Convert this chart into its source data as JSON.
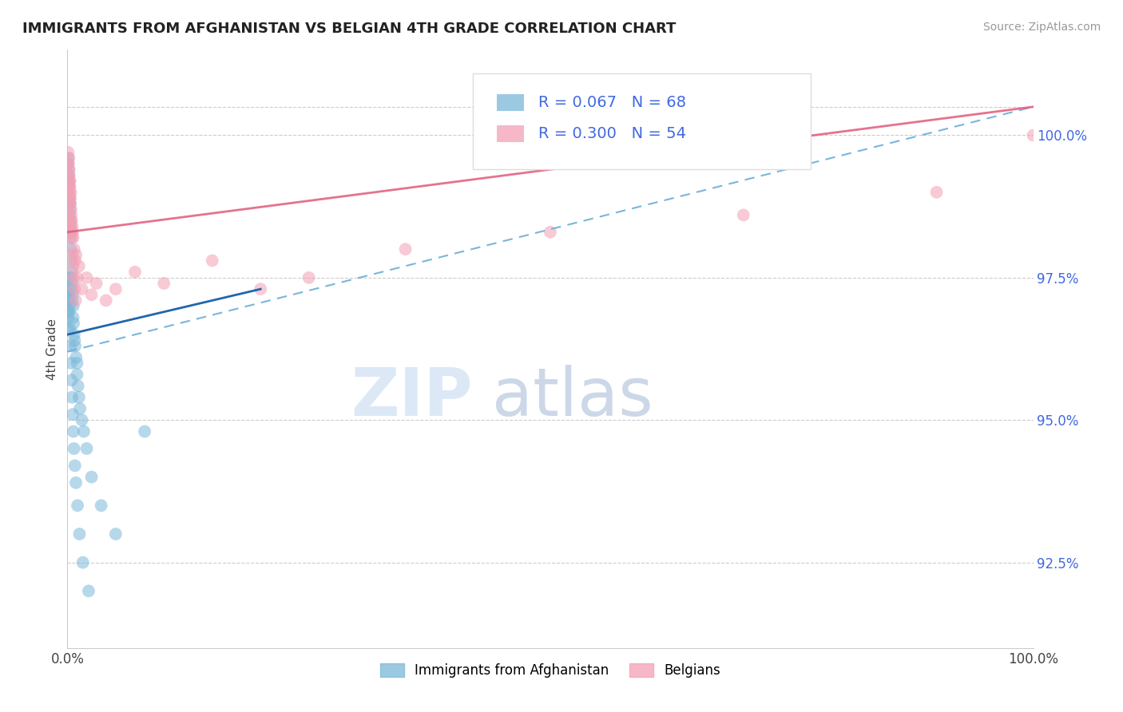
{
  "title": "IMMIGRANTS FROM AFGHANISTAN VS BELGIAN 4TH GRADE CORRELATION CHART",
  "source": "Source: ZipAtlas.com",
  "ylabel": "4th Grade",
  "xlim": [
    0.0,
    100.0
  ],
  "ylim": [
    91.0,
    101.5
  ],
  "yticks": [
    92.5,
    95.0,
    97.5,
    100.0
  ],
  "ytick_labels": [
    "92.5%",
    "95.0%",
    "97.5%",
    "100.0%"
  ],
  "legend_blue_label": "R = 0.067   N = 68",
  "legend_pink_label": "R = 0.300   N = 54",
  "legend_bottom_blue": "Immigrants from Afghanistan",
  "legend_bottom_pink": "Belgians",
  "blue_color": "#7ab8d9",
  "pink_color": "#f4a0b5",
  "blue_line_color": "#2166ac",
  "pink_line_color": "#e05a7a",
  "dashed_line_color": "#6baed6",
  "background_color": "#ffffff",
  "ytick_color": "#4169e1",
  "blue_line_x": [
    0.0,
    20.0
  ],
  "blue_line_y": [
    96.5,
    97.3
  ],
  "dashed_line_x": [
    0.0,
    100.0
  ],
  "dashed_line_y": [
    96.2,
    100.5
  ],
  "pink_line_x": [
    0.0,
    100.0
  ],
  "pink_line_y": [
    98.3,
    100.5
  ],
  "blue_scatter_x": [
    0.05,
    0.05,
    0.1,
    0.1,
    0.1,
    0.15,
    0.15,
    0.15,
    0.2,
    0.2,
    0.2,
    0.2,
    0.25,
    0.25,
    0.3,
    0.3,
    0.3,
    0.35,
    0.35,
    0.4,
    0.4,
    0.45,
    0.45,
    0.5,
    0.5,
    0.55,
    0.6,
    0.6,
    0.65,
    0.7,
    0.75,
    0.8,
    0.9,
    1.0,
    1.0,
    1.1,
    1.2,
    1.3,
    1.5,
    1.7,
    2.0,
    2.5,
    3.5,
    5.0,
    8.0,
    0.05,
    0.05,
    0.08,
    0.08,
    0.12,
    0.12,
    0.18,
    0.18,
    0.22,
    0.28,
    0.32,
    0.38,
    0.42,
    0.48,
    0.55,
    0.62,
    0.68,
    0.78,
    0.88,
    1.05,
    1.25,
    1.6,
    2.2
  ],
  "blue_scatter_y": [
    99.5,
    99.2,
    99.6,
    99.3,
    99.0,
    99.4,
    99.1,
    98.8,
    99.2,
    98.9,
    98.6,
    98.3,
    98.7,
    98.4,
    98.8,
    98.5,
    98.2,
    98.3,
    98.0,
    97.8,
    97.5,
    97.6,
    97.3,
    97.4,
    97.1,
    97.2,
    97.0,
    96.8,
    96.7,
    96.5,
    96.4,
    96.3,
    96.1,
    96.0,
    95.8,
    95.6,
    95.4,
    95.2,
    95.0,
    94.8,
    94.5,
    94.0,
    93.5,
    93.0,
    94.8,
    96.9,
    96.6,
    97.2,
    96.8,
    97.5,
    97.1,
    97.3,
    96.9,
    97.0,
    96.6,
    96.3,
    96.0,
    95.7,
    95.4,
    95.1,
    94.8,
    94.5,
    94.2,
    93.9,
    93.5,
    93.0,
    92.5,
    92.0
  ],
  "pink_scatter_x": [
    0.05,
    0.08,
    0.1,
    0.12,
    0.15,
    0.15,
    0.18,
    0.2,
    0.22,
    0.25,
    0.28,
    0.3,
    0.32,
    0.35,
    0.38,
    0.4,
    0.45,
    0.5,
    0.55,
    0.6,
    0.7,
    0.8,
    0.9,
    1.0,
    1.2,
    1.5,
    2.0,
    2.5,
    3.0,
    4.0,
    5.0,
    7.0,
    10.0,
    15.0,
    20.0,
    25.0,
    35.0,
    50.0,
    70.0,
    90.0,
    0.1,
    0.15,
    0.2,
    0.25,
    0.3,
    0.35,
    0.4,
    0.45,
    0.52,
    0.58,
    0.65,
    0.75,
    0.85,
    100.0
  ],
  "pink_scatter_y": [
    99.5,
    99.7,
    99.3,
    99.5,
    99.6,
    99.2,
    99.4,
    99.3,
    99.1,
    99.0,
    99.2,
    98.8,
    98.9,
    99.0,
    98.7,
    98.6,
    98.5,
    98.4,
    98.3,
    98.2,
    98.0,
    97.8,
    97.9,
    97.5,
    97.7,
    97.3,
    97.5,
    97.2,
    97.4,
    97.1,
    97.3,
    97.6,
    97.4,
    97.8,
    97.3,
    97.5,
    98.0,
    98.3,
    98.6,
    99.0,
    98.6,
    98.8,
    98.9,
    99.1,
    98.5,
    98.4,
    98.3,
    98.2,
    97.9,
    97.7,
    97.5,
    97.3,
    97.1,
    100.0
  ]
}
